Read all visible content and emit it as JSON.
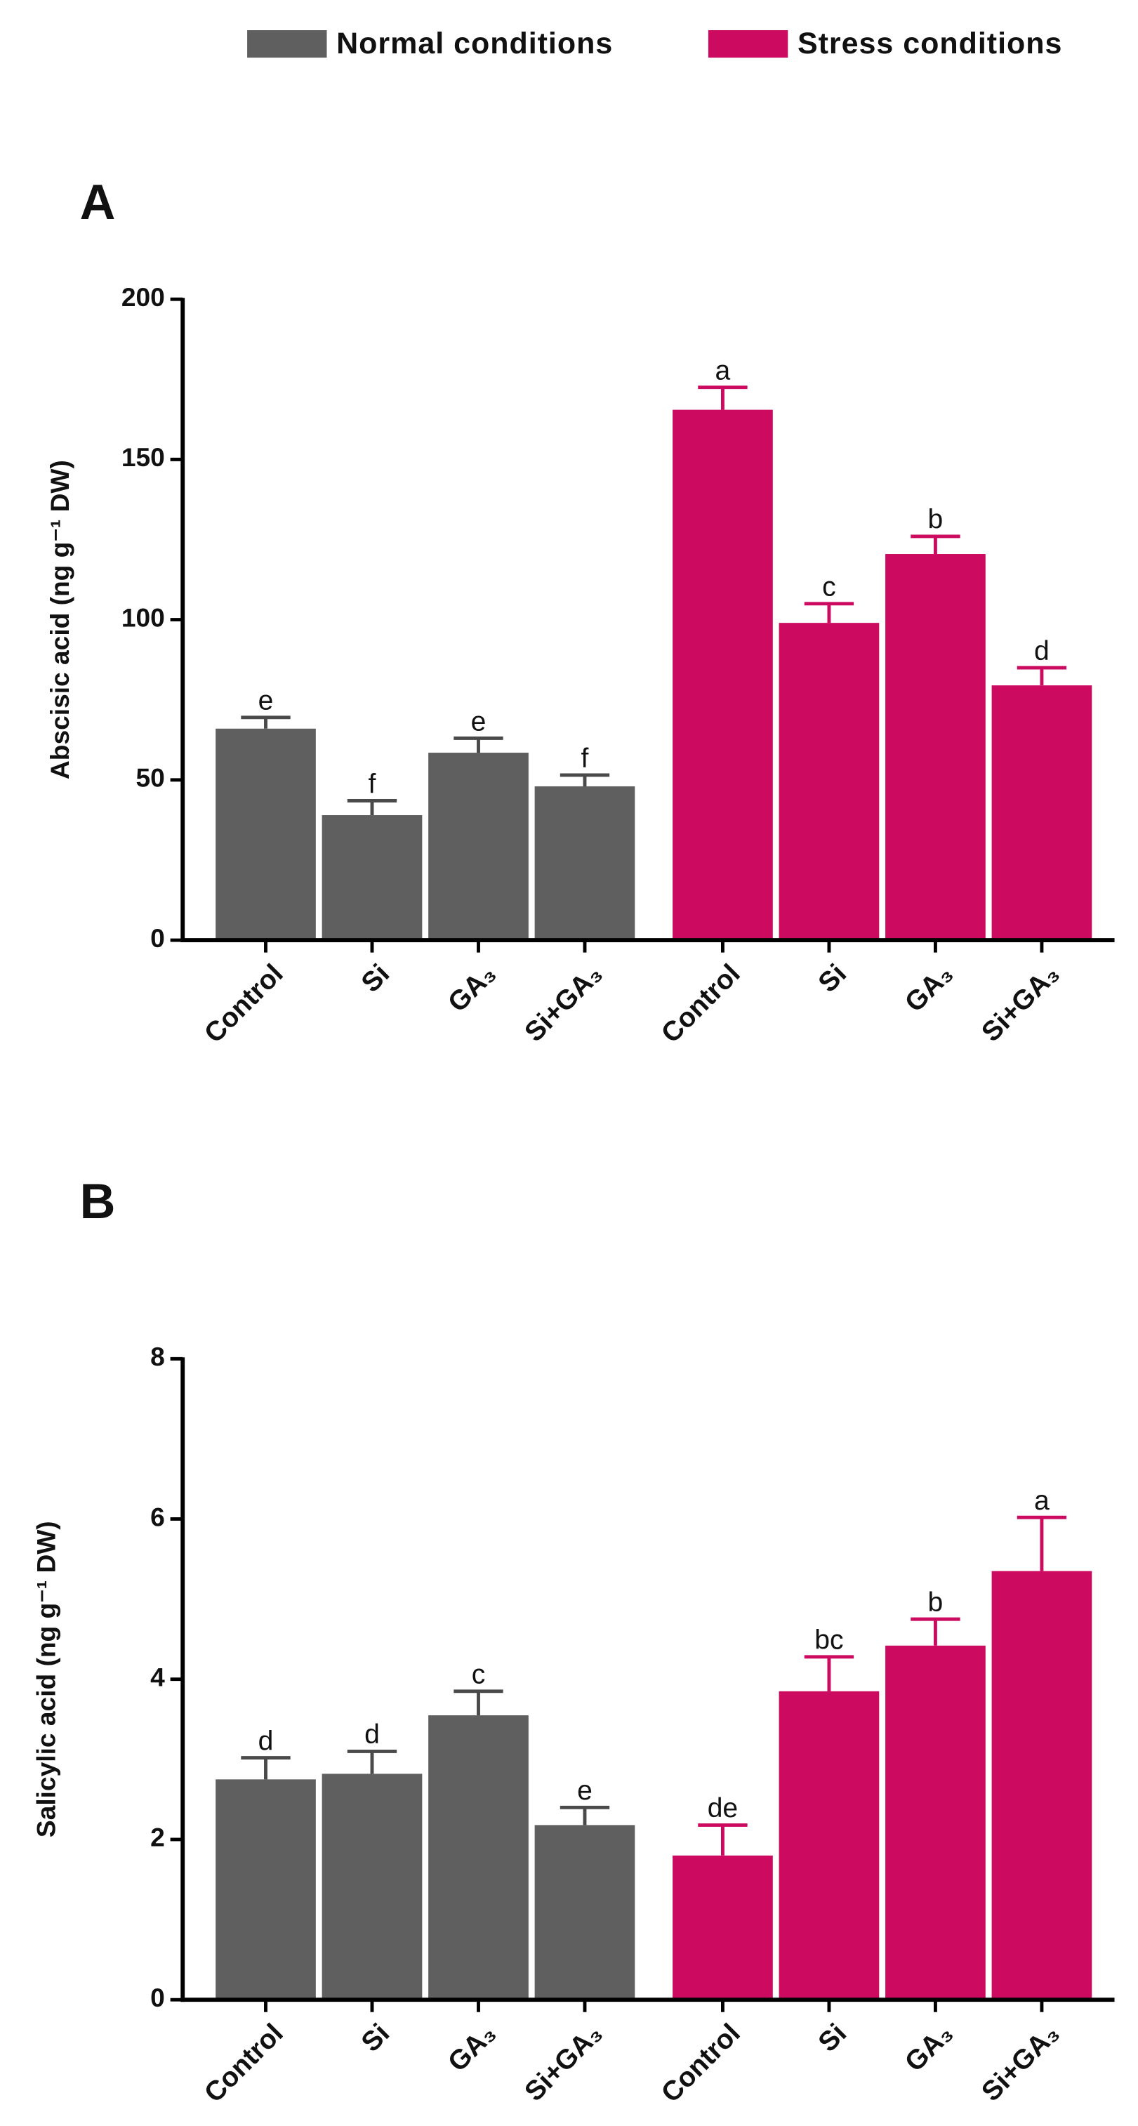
{
  "chart_data": [
    {
      "type": "bar",
      "panel": "A",
      "ylabel": "Abscisic acid  (ng g⁻¹ DW)",
      "categories": [
        "Control",
        "Si",
        "GA₃",
        "Si+GA₃"
      ],
      "ylim": [
        0,
        200
      ],
      "yticks": [
        0,
        50,
        100,
        150,
        200
      ],
      "series": [
        {
          "name": "Normal conditions",
          "color": "#5f5f5f",
          "values": [
            66,
            39,
            58.5,
            48
          ],
          "errors": [
            3.5,
            4.5,
            4.5,
            3.5
          ],
          "letters": [
            "e",
            "f",
            "e",
            "f"
          ]
        },
        {
          "name": "Stress conditions",
          "color": "#cc0a60",
          "values": [
            165.5,
            99,
            120.5,
            79.5
          ],
          "errors": [
            7,
            6,
            5.5,
            5.5
          ],
          "letters": [
            "a",
            "c",
            "b",
            "d"
          ]
        }
      ]
    },
    {
      "type": "bar",
      "panel": "B",
      "ylabel": "Salicylic acid (ng g⁻¹ DW)",
      "categories": [
        "Control",
        "Si",
        "GA₃",
        "Si+GA₃"
      ],
      "ylim": [
        0,
        8
      ],
      "yticks": [
        0,
        2,
        4,
        6,
        8
      ],
      "series": [
        {
          "name": "Normal conditions",
          "color": "#5f5f5f",
          "values": [
            2.75,
            2.82,
            3.55,
            2.18
          ],
          "errors": [
            0.27,
            0.28,
            0.3,
            0.22
          ],
          "letters": [
            "d",
            "d",
            "c",
            "e"
          ]
        },
        {
          "name": "Stress conditions",
          "color": "#cc0a60",
          "values": [
            1.8,
            3.85,
            4.42,
            5.35
          ],
          "errors": [
            0.38,
            0.43,
            0.33,
            0.67
          ],
          "letters": [
            "de",
            "bc",
            "b",
            "a"
          ]
        }
      ]
    }
  ]
}
